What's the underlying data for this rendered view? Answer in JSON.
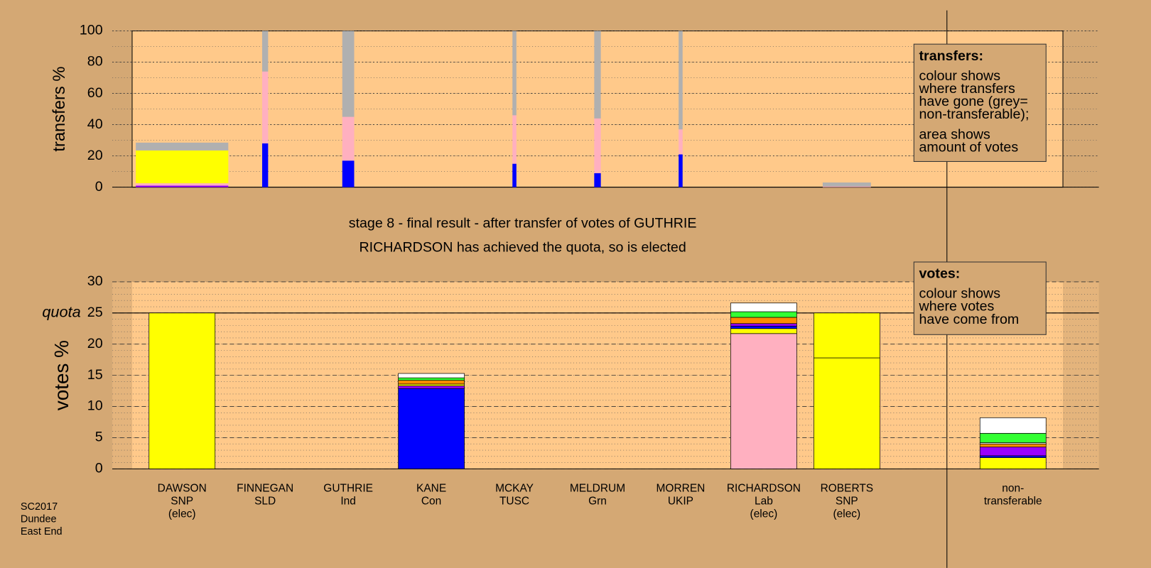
{
  "footer": [
    "SC2017",
    "Dundee",
    "East End"
  ],
  "chart_data": [
    {
      "type": "bar",
      "ylabel": "transfers %",
      "ylim": [
        0,
        100
      ],
      "yticks": [
        0,
        20,
        40,
        60,
        80,
        100
      ],
      "grid_step": 10,
      "widths": [
        1.4,
        0.09,
        0.18,
        0,
        0.06,
        0.1,
        0.06,
        0,
        0.73,
        0,
        0
      ],
      "stacks": [
        [
          {
            "color": "#9900ff",
            "value": 1
          },
          {
            "color": "#ffb0c0",
            "value": 1.5
          },
          {
            "color": "#ffff00",
            "value": 21
          },
          {
            "color": "#b0b0b0",
            "value": 5
          }
        ],
        [
          {
            "color": "#0000ff",
            "value": 28
          },
          {
            "color": "#ffb0c0",
            "value": 46
          },
          {
            "color": "#b0b0b0",
            "value": 26
          }
        ],
        [
          {
            "color": "#0000ff",
            "value": 17
          },
          {
            "color": "#ffb0c0",
            "value": 28
          },
          {
            "color": "#b0b0b0",
            "value": 55
          }
        ],
        [],
        [
          {
            "color": "#0000ff",
            "value": 15
          },
          {
            "color": "#ffb0c0",
            "value": 31
          },
          {
            "color": "#b0b0b0",
            "value": 54
          }
        ],
        [
          {
            "color": "#0000ff",
            "value": 9
          },
          {
            "color": "#ffb0c0",
            "value": 35
          },
          {
            "color": "#b0b0b0",
            "value": 56
          }
        ],
        [
          {
            "color": "#0000ff",
            "value": 21
          },
          {
            "color": "#ffb0c0",
            "value": 16
          },
          {
            "color": "#b0b0b0",
            "value": 63
          }
        ],
        [],
        [
          {
            "color": "#ffb0c0",
            "value": 0.5
          },
          {
            "color": "#b0b0b0",
            "value": 2.5
          }
        ],
        [],
        []
      ],
      "legend": {
        "title": "transfers:",
        "paragraphs": [
          [
            "colour shows",
            "where transfers",
            "have gone (grey=",
            "non-transferable);"
          ],
          [
            "area shows",
            "amount of votes"
          ]
        ]
      }
    },
    {
      "type": "bar",
      "title": [
        "stage 8 - final result - after transfer of votes of GUTHRIE",
        "RICHARDSON has achieved the quota, so is elected"
      ],
      "ylabel": "votes %",
      "ylim": [
        0,
        30
      ],
      "yticks": [
        0,
        5,
        10,
        15,
        20,
        25,
        30
      ],
      "grid_step": 1,
      "quota": 25,
      "quota_label": "quota",
      "categories": [
        [
          "DAWSON",
          "SNP",
          "(elec)"
        ],
        [
          "FINNEGAN",
          "SLD"
        ],
        [
          "GUTHRIE",
          "Ind"
        ],
        [
          "KANE",
          "Con"
        ],
        [
          "MCKAY",
          "TUSC"
        ],
        [
          "MELDRUM",
          "Grn"
        ],
        [
          "MORREN",
          "UKIP"
        ],
        [
          "RICHARDSON",
          "Lab",
          "(elec)"
        ],
        [
          "ROBERTS",
          "SNP",
          "(elec)"
        ],
        null,
        [
          "non-",
          "transferable"
        ]
      ],
      "stacks": [
        [
          {
            "color": "#ffff00",
            "value": 25
          }
        ],
        [],
        [],
        [
          {
            "color": "#0000ff",
            "value": 12.9
          },
          {
            "color": "#9900ff",
            "value": 0.4
          },
          {
            "color": "#ffff00",
            "value": 0.3
          },
          {
            "color": "#ff8c00",
            "value": 0.6
          },
          {
            "color": "#33ff33",
            "value": 0.4
          },
          {
            "color": "#ffffff",
            "value": 0.7
          }
        ],
        [],
        [],
        [],
        [
          {
            "color": "#ffb0c0",
            "value": 21.7
          },
          {
            "color": "#ffff00",
            "value": 0.8
          },
          {
            "color": "#0000ff",
            "value": 0.4
          },
          {
            "color": "#9900ff",
            "value": 0.4
          },
          {
            "color": "#ff8c00",
            "value": 1.0
          },
          {
            "color": "#33ff33",
            "value": 0.9
          },
          {
            "color": "#ffffff",
            "value": 1.4
          }
        ],
        [
          {
            "color": "#ffff00",
            "value": 17.8
          },
          {
            "color": "#ffff00",
            "value": 7.2
          }
        ],
        [],
        [
          {
            "color": "#ffff00",
            "value": 1.8
          },
          {
            "color": "#0000ff",
            "value": 0.3
          },
          {
            "color": "#9900ff",
            "value": 1.4
          },
          {
            "color": "#ff8c00",
            "value": 0.5
          },
          {
            "color": "#ffffff",
            "value": 0.2
          },
          {
            "color": "#33ff33",
            "value": 1.5
          },
          {
            "color": "#ffffff",
            "value": 2.5
          }
        ]
      ],
      "legend": {
        "title": "votes:",
        "paragraphs": [
          [
            "colour shows",
            "where votes",
            "have come from"
          ]
        ]
      }
    }
  ]
}
